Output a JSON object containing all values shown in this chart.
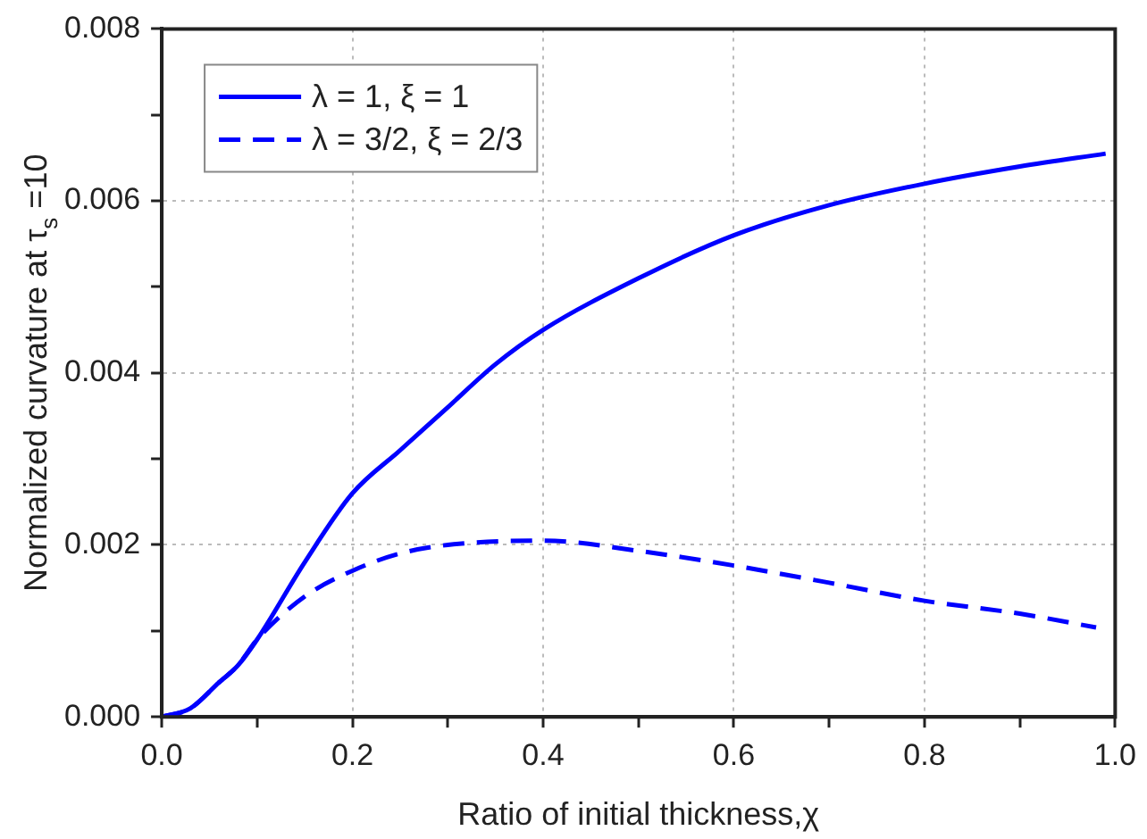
{
  "chart_data": {
    "type": "line",
    "xlabel": "Ratio of initial thickness,χ",
    "ylabel": "Normalized curvature at τ$_{s}$ =10",
    "xlim": [
      0,
      1
    ],
    "ylim": [
      0,
      0.008
    ],
    "xticks": [
      {
        "value": 0,
        "label": "0.0"
      },
      {
        "value": 0.1,
        "label": null
      },
      0.2,
      {
        "value": 0.3,
        "label": null
      },
      0.4,
      {
        "value": 0.5,
        "label": null
      },
      0.6,
      {
        "value": 0.7,
        "label": null
      },
      0.8,
      {
        "value": 0.9,
        "label": null
      },
      {
        "value": 1,
        "label": "1.0"
      }
    ],
    "yticks": [
      {
        "value": 0,
        "label": "0.000"
      },
      {
        "value": 0.001,
        "label": null
      },
      0.002,
      {
        "value": 0.003,
        "label": null
      },
      0.004,
      {
        "value": 0.005,
        "label": null
      },
      0.006,
      {
        "value": 0.007,
        "label": null
      },
      0.008
    ],
    "grid": true,
    "legend": "top left",
    "series": [
      {
        "name": "λ = 1, ξ = 1",
        "color": "#0000ff",
        "line_style": "solid",
        "x": [
          0,
          0.03,
          0.06,
          0.08,
          0.1,
          0.15,
          0.2,
          0.25,
          0.3,
          0.35,
          0.4,
          0.5,
          0.6,
          0.7,
          0.8,
          0.9,
          0.99
        ],
        "values": [
          0,
          0.0001,
          0.0004,
          0.0006,
          0.0009,
          0.0018,
          0.0026,
          0.0031,
          0.0036,
          0.0041,
          0.0045,
          0.0051,
          0.0056,
          0.00595,
          0.0062,
          0.0064,
          0.00655
        ]
      },
      {
        "name": "λ = 3/2, ξ = 2/3",
        "color": "#0000ff",
        "line_style": "dashed",
        "x": [
          0,
          0.03,
          0.06,
          0.08,
          0.1,
          0.15,
          0.2,
          0.25,
          0.3,
          0.4,
          0.5,
          0.6,
          0.7,
          0.8,
          0.9,
          0.98
        ],
        "values": [
          0,
          0.0001,
          0.0004,
          0.0006,
          0.0009,
          0.0014,
          0.0017,
          0.0019,
          0.002,
          0.00205,
          0.00193,
          0.00176,
          0.00156,
          0.00135,
          0.0012,
          0.00104
        ]
      }
    ]
  }
}
